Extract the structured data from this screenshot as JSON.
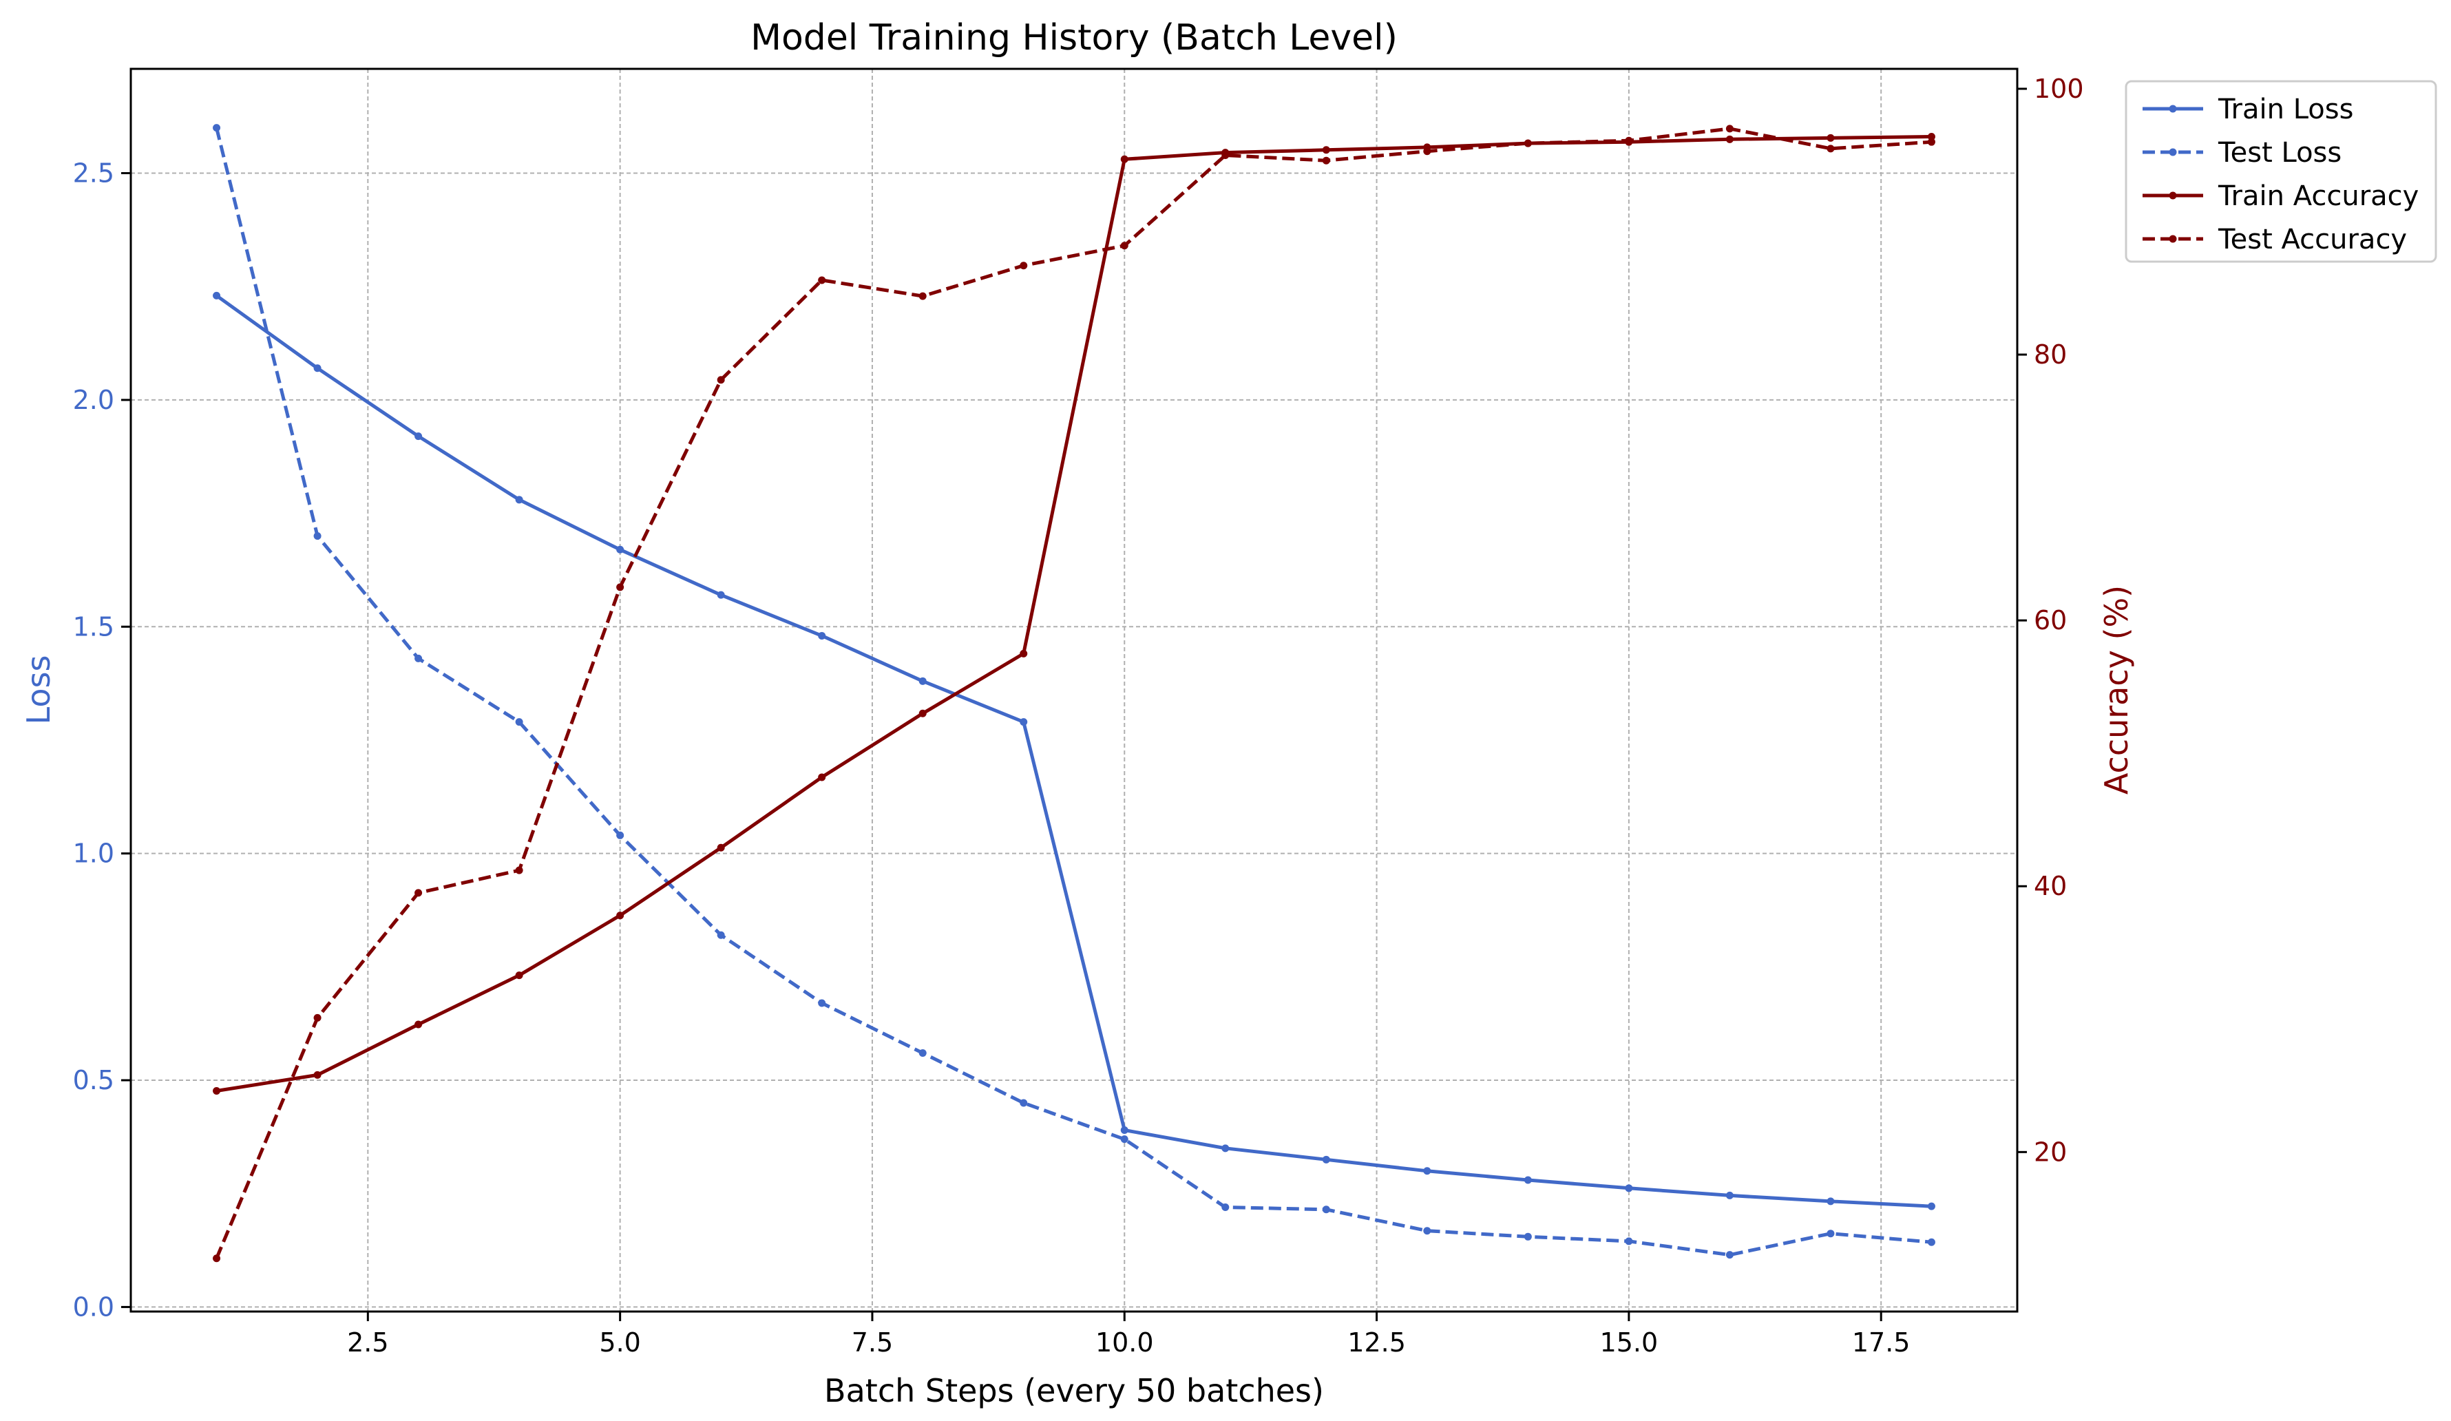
{
  "chart_data": {
    "type": "line",
    "title": "Model Training History (Batch Level)",
    "xlabel": "Batch Steps (every 50 batches)",
    "ylabel_left": "Loss",
    "ylabel_right": "Accuracy (%)",
    "xlim": [
      0.15,
      18.85
    ],
    "ylim_left": [
      -0.01,
      2.73
    ],
    "ylim_right": [
      8,
      101.5
    ],
    "x_ticks": [
      2.5,
      5.0,
      7.5,
      10.0,
      12.5,
      15.0,
      17.5
    ],
    "x_tick_labels": [
      "2.5",
      "5.0",
      "7.5",
      "10.0",
      "12.5",
      "15.0",
      "17.5"
    ],
    "y_left_ticks": [
      0.0,
      0.5,
      1.0,
      1.5,
      2.0,
      2.5
    ],
    "y_left_tick_labels": [
      "0.0",
      "0.5",
      "1.0",
      "1.5",
      "2.0",
      "2.5"
    ],
    "y_right_ticks": [
      20,
      40,
      60,
      80,
      100
    ],
    "y_right_tick_labels": [
      "20",
      "40",
      "60",
      "80",
      "100"
    ],
    "grid": true,
    "legend_position": "outside-top-right",
    "x": [
      1,
      2,
      3,
      4,
      5,
      6,
      7,
      8,
      9,
      10,
      11,
      12,
      13,
      14,
      15,
      16,
      17,
      18
    ],
    "series": [
      {
        "name": "Train Loss",
        "axis": "left",
        "style": "solid",
        "color": "#4169c8",
        "values": [
          2.23,
          2.07,
          1.92,
          1.78,
          1.67,
          1.57,
          1.48,
          1.38,
          1.29,
          0.39,
          0.35,
          0.325,
          0.3,
          0.28,
          0.262,
          0.246,
          0.233,
          0.222
        ]
      },
      {
        "name": "Test Loss",
        "axis": "left",
        "style": "dashed",
        "color": "#4169c8",
        "values": [
          2.6,
          1.7,
          1.43,
          1.29,
          1.04,
          0.82,
          0.67,
          0.56,
          0.45,
          0.37,
          0.22,
          0.215,
          0.168,
          0.155,
          0.145,
          0.115,
          0.162,
          0.143
        ]
      },
      {
        "name": "Train Accuracy",
        "axis": "right",
        "style": "solid",
        "color": "#800000",
        "values": [
          24.6,
          25.8,
          29.6,
          33.3,
          37.8,
          42.9,
          48.2,
          53.0,
          57.5,
          94.7,
          95.2,
          95.4,
          95.6,
          95.9,
          96.0,
          96.2,
          96.3,
          96.4
        ]
      },
      {
        "name": "Test Accuracy",
        "axis": "right",
        "style": "dashed",
        "color": "#800000",
        "values": [
          12.0,
          30.1,
          39.5,
          41.2,
          62.5,
          78.1,
          85.6,
          84.4,
          86.7,
          88.2,
          95.0,
          94.6,
          95.3,
          95.9,
          96.1,
          97.0,
          95.5,
          96.0
        ]
      }
    ]
  },
  "colors": {
    "loss": "#4169c8",
    "accuracy": "#800000",
    "grid": "#b0b0b0"
  }
}
